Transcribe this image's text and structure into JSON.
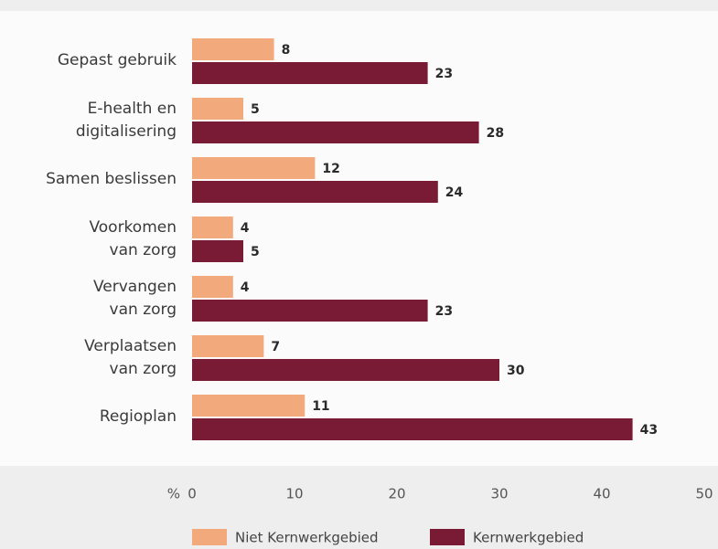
{
  "chart_data": {
    "type": "barh",
    "categories": [
      "Gepast gebruik",
      "E-health en\ndigitalisering",
      "Samen beslissen",
      "Voorkomen\nvan zorg",
      "Vervangen\nvan zorg",
      "Verplaatsen\nvan zorg",
      "Regioplan"
    ],
    "series": [
      {
        "name": "Niet Kernwerkgebied",
        "color": "#f2a97c",
        "values": [
          8,
          5,
          12,
          4,
          4,
          7,
          11
        ]
      },
      {
        "name": "Kernwerkgebied",
        "color": "#7a1b36",
        "values": [
          23,
          28,
          24,
          5,
          23,
          30,
          43
        ]
      }
    ],
    "x_label": "%",
    "xlim": [
      0,
      50
    ],
    "xticks": [
      0,
      10,
      20,
      30,
      40,
      50
    ],
    "grid": false,
    "legend": "bottom"
  }
}
